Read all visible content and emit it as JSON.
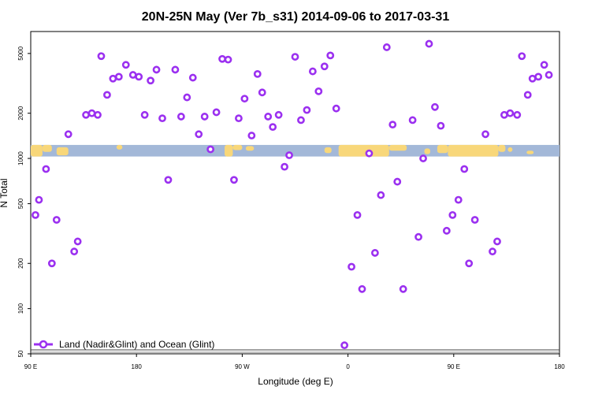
{
  "chart_data": {
    "type": "scatter",
    "title": "20N-25N May (Ver 7b_s31)   2014-09-06 to 2017-03-31",
    "xlabel": "Longitude (deg E)",
    "ylabel": "N Total",
    "x_ticks": [
      {
        "value": 90,
        "label": "90 E"
      },
      {
        "value": 180,
        "label": "180"
      },
      {
        "value": 270,
        "label": "90 W"
      },
      {
        "value": 360,
        "label": "0"
      },
      {
        "value": 450,
        "label": "90 E"
      },
      {
        "value": 540,
        "label": "180"
      }
    ],
    "y_ticks": [
      {
        "value": 50,
        "label": "50"
      },
      {
        "value": 100,
        "label": "100"
      },
      {
        "value": 200,
        "label": "200"
      },
      {
        "value": 500,
        "label": "500"
      },
      {
        "value": 1000,
        "label": "1000"
      },
      {
        "value": 2000,
        "label": "2000"
      },
      {
        "value": 5000,
        "label": "5000"
      }
    ],
    "xlim": [
      90,
      540
    ],
    "ylim": [
      50,
      7000
    ],
    "y_scale": "log",
    "grid": false,
    "legend_position": "bottom-left",
    "series": [
      {
        "name": "Land (Nadir&Glint) and Ocean (Glint)",
        "color": "#9b30f0",
        "points": [
          [
            94,
            420
          ],
          [
            97,
            530
          ],
          [
            103,
            850
          ],
          [
            108,
            200
          ],
          [
            112,
            390
          ],
          [
            122,
            1450
          ],
          [
            127,
            240
          ],
          [
            130,
            280
          ],
          [
            137,
            1950
          ],
          [
            142,
            2000
          ],
          [
            147,
            1950
          ],
          [
            150,
            4800
          ],
          [
            155,
            2650
          ],
          [
            160,
            3400
          ],
          [
            165,
            3500
          ],
          [
            171,
            4200
          ],
          [
            177,
            3600
          ],
          [
            182,
            3500
          ],
          [
            187,
            1950
          ],
          [
            192,
            3300
          ],
          [
            197,
            3900
          ],
          [
            202,
            1850
          ],
          [
            207,
            720
          ],
          [
            213,
            3900
          ],
          [
            218,
            1900
          ],
          [
            223,
            2550
          ],
          [
            228,
            3450
          ],
          [
            233,
            1450
          ],
          [
            238,
            1900
          ],
          [
            243,
            1150
          ],
          [
            248,
            2030
          ],
          [
            253,
            4600
          ],
          [
            258,
            4550
          ],
          [
            263,
            720
          ],
          [
            267,
            1850
          ],
          [
            272,
            2500
          ],
          [
            278,
            1420
          ],
          [
            283,
            3650
          ],
          [
            287,
            2750
          ],
          [
            292,
            1900
          ],
          [
            296,
            1620
          ],
          [
            301,
            1950
          ],
          [
            306,
            880
          ],
          [
            310,
            1050
          ],
          [
            315,
            4750
          ],
          [
            320,
            1800
          ],
          [
            325,
            2100
          ],
          [
            330,
            3800
          ],
          [
            335,
            2800
          ],
          [
            340,
            4100
          ],
          [
            345,
            4850
          ],
          [
            350,
            2150
          ],
          [
            357,
            57
          ],
          [
            363,
            190
          ],
          [
            368,
            420
          ],
          [
            372,
            135
          ],
          [
            378,
            1080
          ],
          [
            383,
            235
          ],
          [
            388,
            570
          ],
          [
            393,
            5500
          ],
          [
            398,
            1680
          ],
          [
            402,
            700
          ],
          [
            407,
            135
          ],
          [
            415,
            1800
          ],
          [
            420,
            300
          ],
          [
            424,
            1000
          ],
          [
            429,
            5800
          ],
          [
            434,
            2200
          ],
          [
            439,
            1650
          ],
          [
            444,
            330
          ],
          [
            449,
            420
          ],
          [
            454,
            530
          ],
          [
            459,
            850
          ],
          [
            463,
            200
          ],
          [
            468,
            390
          ],
          [
            477,
            1450
          ],
          [
            483,
            240
          ],
          [
            487,
            280
          ],
          [
            493,
            1950
          ],
          [
            498,
            2000
          ],
          [
            504,
            1950
          ],
          [
            508,
            4800
          ],
          [
            513,
            2650
          ],
          [
            517,
            3400
          ],
          [
            522,
            3500
          ],
          [
            527,
            4200
          ],
          [
            531,
            3600
          ]
        ]
      }
    ],
    "map_strip": {
      "ocean_color": "#a3b8d8",
      "land_color": "#f8d77a",
      "y_range": [
        1030,
        1230
      ]
    }
  }
}
